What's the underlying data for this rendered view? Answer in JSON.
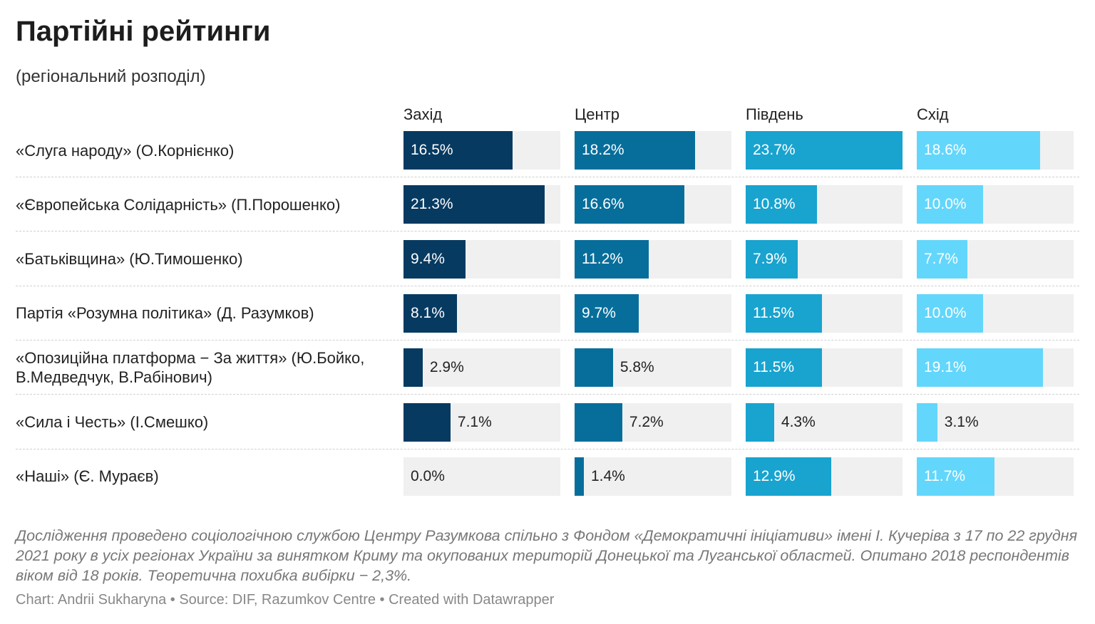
{
  "chart_data": {
    "type": "split-bar",
    "title": "Партійні рейтинги",
    "subtitle": "(регіональний розподіл)",
    "categories": [
      "«Слуга народу» (О.Корнієнко)",
      "«Європейська Солідарність» (П.Порошенко)",
      "«Батьківщина» (Ю.Тимошенко)",
      "Партія «Розумна політика» (Д. Разумков)",
      "«Опозиційна платформа − За життя» (Ю.Бойко, В.Медведчук, В.Рабінович)",
      "«Сила і Честь» (І.Смешко)",
      "«Наші» (Є. Мураєв)"
    ],
    "series": [
      {
        "name": "Захід",
        "color": "#063a61",
        "values": [
          16.5,
          21.3,
          9.4,
          8.1,
          2.9,
          7.1,
          0.0
        ],
        "value_labels": [
          "16.5%",
          "21.3%",
          "9.4%",
          "8.1%",
          "2.9%",
          "7.1%",
          "0.0%"
        ]
      },
      {
        "name": "Центр",
        "color": "#076e9b",
        "values": [
          18.2,
          16.6,
          11.2,
          9.7,
          5.8,
          7.2,
          1.4
        ],
        "value_labels": [
          "18.2%",
          "16.6%",
          "11.2%",
          "9.7%",
          "5.8%",
          "7.2%",
          "1.4%"
        ]
      },
      {
        "name": "Південь",
        "color": "#19a3cf",
        "values": [
          23.7,
          10.8,
          7.9,
          11.5,
          11.5,
          4.3,
          12.9
        ],
        "value_labels": [
          "23.7%",
          "10.8%",
          "7.9%",
          "11.5%",
          "11.5%",
          "4.3%",
          "12.9%"
        ]
      },
      {
        "name": "Схід",
        "color": "#63d6fb",
        "values": [
          18.6,
          10.0,
          7.7,
          10.0,
          19.1,
          3.1,
          11.7
        ],
        "value_labels": [
          "18.6%",
          "10.0%",
          "7.7%",
          "10.0%",
          "19.1%",
          "3.1%",
          "11.7%"
        ]
      }
    ],
    "notes": "Дослідження проведено соціологічною службою Центру Разумкова спільно з Фондом «Демократичні ініціативи» імені І. Кучеріва з 17 по 22 грудня 2021 року в усіх регіонах України за винятком Криму та окупованих територій Донецької та Луганської областей. Опитано 2018 респондентів віком від 18 років. Теоретична похибка вибірки − 2,3%.",
    "source": "Chart: Andrii Sukharyna • Source: DIF, Razumkov Centre • Created with Datawrapper"
  }
}
